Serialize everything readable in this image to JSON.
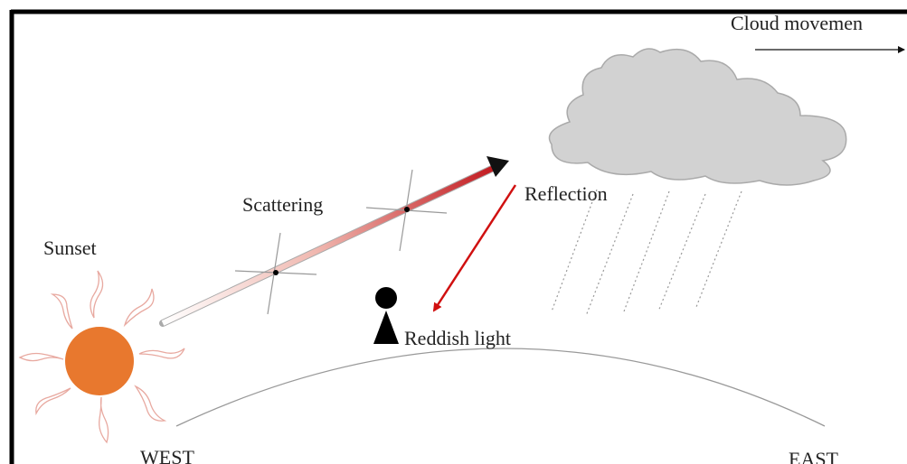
{
  "labels": {
    "cloud_movement": "Cloud movemen",
    "sunset": "Sunset",
    "scattering": "Scattering",
    "reflection": "Reflection",
    "reddish_light": "Reddish light",
    "west": "WEST",
    "east": "EAST"
  }
}
